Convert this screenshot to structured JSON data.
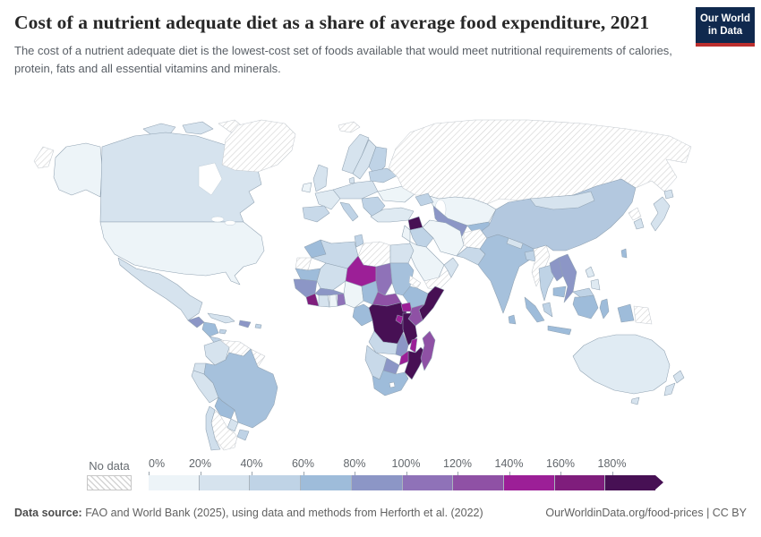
{
  "header": {
    "title": "Cost of a nutrient adequate diet as a share of average food expenditure, 2021",
    "subtitle": "The cost of a nutrient adequate diet is the lowest-cost set of foods available that would meet nutritional requirements of calories, protein, fats and all essential vitamins and minerals."
  },
  "logo": {
    "line1": "Our World",
    "line2": "in Data",
    "bg_color": "#10294e",
    "accent_color": "#bc2f2e"
  },
  "legend": {
    "no_data_label": "No data",
    "ticks": [
      "0%",
      "20%",
      "40%",
      "60%",
      "80%",
      "100%",
      "120%",
      "140%",
      "160%",
      "180%"
    ],
    "bins": [
      {
        "range": "0-20%",
        "color": "#edf4f8"
      },
      {
        "range": "20-40%",
        "color": "#d6e3ee"
      },
      {
        "range": "40-60%",
        "color": "#bfd3e6"
      },
      {
        "range": "60-80%",
        "color": "#9ebcda"
      },
      {
        "range": "80-100%",
        "color": "#8c96c6"
      },
      {
        "range": "100-120%",
        "color": "#8f72b8"
      },
      {
        "range": "120-140%",
        "color": "#8f51a5"
      },
      {
        "range": "140-160%",
        "color": "#9c1f97"
      },
      {
        "range": "160-180%",
        "color": "#7f1d7c"
      },
      {
        "range": "180%+",
        "color": "#471054"
      }
    ]
  },
  "chart_data": {
    "type": "heatmap",
    "subtype": "choropleth-world-map",
    "title": "Cost of a nutrient adequate diet as a share of average food expenditure, 2021",
    "unit": "% of average food expenditure",
    "legend_position": "bottom",
    "bins": [
      "0-20%",
      "20-40%",
      "40-60%",
      "60-80%",
      "80-100%",
      "100-120%",
      "120-140%",
      "140-160%",
      "160-180%",
      "180%+",
      "No data"
    ],
    "regions": {
      "usa": "0-20%",
      "alaska": "0-20%",
      "canada": "20-40%",
      "mexico": "20-40%",
      "guatemala": "80-100%",
      "honduras_nicaragua": "60-80%",
      "costa_rica_panama": "40-60%",
      "cuba": "20-40%",
      "jamaica": "40-60%",
      "hispaniola": "80-100%",
      "puerto_rico": "40-60%",
      "colombia": "20-40%",
      "venezuela": "No data",
      "guyanas": "No data",
      "ecuador": "20-40%",
      "peru": "20-40%",
      "brazil": "60-80%",
      "bolivia": "60-80%",
      "paraguay": "20-40%",
      "uruguay": "40-60%",
      "chile": "20-40%",
      "argentina": "No data",
      "greenland": "No data",
      "iceland": "No data",
      "uk": "20-40%",
      "ireland": "0-20%",
      "norway": "20-40%",
      "sweden": "20-40%",
      "finland": "40-60%",
      "denmark": "20-40%",
      "france": "20-40%",
      "iberia": "40-60%",
      "central_europe": "20-40%",
      "italy": "40-60%",
      "balkans": "40-60%",
      "ukraine": "0-20%",
      "belarus_baltic": "40-60%",
      "russia": "No data",
      "kazakhstan": "0-20%",
      "uzbekistan_turkmenistan": "80-100%",
      "kyrgyzstan_tajikistan": "60-80%",
      "caucasus": "40-60%",
      "turkey": "20-40%",
      "syria": "180%+",
      "jordan_israel": "0-20%",
      "iraq": "40-60%",
      "iran": "0-20%",
      "saudi_arabia": "0-20%",
      "yemen": "No data",
      "oman": "20-40%",
      "afghanistan": "No data",
      "pakistan": "40-60%",
      "india": "60-80%",
      "nepal": "20-40%",
      "bangladesh": "40-60%",
      "sri_lanka": "60-80%",
      "myanmar": "No data",
      "china": "40-60%",
      "mongolia": "20-40%",
      "north_korea": "No data",
      "south_korea": "20-40%",
      "japan": "20-40%",
      "taiwan": "60-80%",
      "thailand": "40-60%",
      "laos": "80-100%",
      "vietnam": "80-100%",
      "cambodia": "60-80%",
      "malaysia": "40-60%",
      "philippines": "20-40%",
      "indonesia": "60-80%",
      "papua_new_guinea": "No data",
      "australia": "20-40%",
      "tasmania": "20-40%",
      "new_zealand": "20-40%",
      "morocco": "60-80%",
      "western_sahara": "No data",
      "algeria": "40-60%",
      "tunisia": "40-60%",
      "libya": "No data",
      "egypt": "20-40%",
      "mauritania": "60-80%",
      "mali": "20-40%",
      "niger": "140-160%",
      "chad": "100-120%",
      "sudan": "60-80%",
      "eritrea": "No data",
      "ethiopia": "60-80%",
      "somalia": "180%+",
      "senegal_guinea": "80-100%",
      "sierra_leone_liberia": "160-180%",
      "ivory_coast": "20-40%",
      "ghana": "0-20%",
      "togo_benin": "100-120%",
      "burkina_faso": "80-100%",
      "nigeria": "0-20%",
      "cameroon": "60-80%",
      "central_african_republic": "120-140%",
      "gabon_congo": "60-80%",
      "drc": "180%+",
      "uganda": "140-160%",
      "kenya": "120-140%",
      "tanzania": "180%+",
      "rwanda_burundi": "140-160%",
      "angola": "40-60%",
      "zambia": "80-100%",
      "malawi": "140-160%",
      "mozambique": "180%+",
      "zimbabwe": "140-160%",
      "botswana": "80-100%",
      "namibia": "40-60%",
      "south_africa": "60-80%",
      "madagascar": "120-140%"
    }
  },
  "map": {
    "fills": {
      "alaska": "#edf4f8",
      "canada": "#d6e3ee",
      "usa": "#edf4f8",
      "mexico": "#d6e3ee",
      "guatemala": "#8c96c6",
      "honduras_nicaragua": "#9ebcda",
      "costa_rica_panama": "#bfd3e6",
      "cuba": "#d6e3ee",
      "jamaica": "#bfd3e6",
      "hispaniola": "#8c96c6",
      "puerto_rico": "#bfd3e6",
      "arctic_islands": "#d6e3ee",
      "colombia": "#d6e3ee",
      "ecuador": "#d6e3ee",
      "peru": "#d6e3ee",
      "brazil": "#a6c1dc",
      "bolivia": "#9ebcda",
      "paraguay": "#d6e3ee",
      "uruguay": "#bfd3e6",
      "chile": "#d0dfec",
      "uk": "#d6e3ee",
      "ireland": "#edf4f8",
      "norway": "#d6e3ee",
      "sweden": "#d6e3ee",
      "finland": "#bfd3e6",
      "denmark": "#d6e3ee",
      "france": "#dfeaf2",
      "iberia": "#c8d9e9",
      "central_europe": "#d6e3ee",
      "italy": "#bfd3e6",
      "balkans": "#bfd3e6",
      "ukraine": "#eef5f8",
      "belarus_baltic": "#bfd3e6",
      "kazakhstan": "#edf4f8",
      "uzbekistan_turkmenistan": "#8c96c6",
      "kyrgyzstan_tajikistan": "#9ebcda",
      "caucasus": "#bfd3e6",
      "turkey": "#dfeaf2",
      "syria": "#471054",
      "jordan_israel": "#edf4f8",
      "iraq": "#bfd3e6",
      "iran": "#f0f6f9",
      "saudi_arabia": "#edf4f8",
      "oman": "#d6e3ee",
      "pakistan": "#c8d9e9",
      "india": "#a6c1dc",
      "nepal": "#d6e3ee",
      "bangladesh": "#bfd3e6",
      "sri_lanka": "#9ebcda",
      "china": "#b3c8df",
      "mongolia": "#d6e3ee",
      "south_korea": "#d6e3ee",
      "japan": "#d6e3ee",
      "taiwan": "#9ebcda",
      "thailand": "#bfd3e6",
      "laos": "#8c96c6",
      "vietnam": "#8c96c6",
      "cambodia": "#9ebcda",
      "malaysia": "#bfd3e6",
      "philippines": "#dfeaf2",
      "indonesia": "#9ebcda",
      "australia": "#e0ebf3",
      "tasmania": "#d6e3ee",
      "new_zealand": "#d6e3ee",
      "morocco": "#9ebcda",
      "algeria": "#c8d9e9",
      "tunisia": "#bfd3e6",
      "egypt": "#d6e3ee",
      "mauritania": "#9ebcda",
      "mali": "#d0dfec",
      "niger": "#9c1f97",
      "chad": "#8f72b8",
      "sudan": "#a6c1dc",
      "ethiopia": "#9ebcda",
      "somalia": "#471054",
      "senegal_guinea": "#8c96c6",
      "sierra_leone_liberia": "#7f1d7c",
      "ivory_coast": "#d6e3ee",
      "ghana": "#edf4f8",
      "togo_benin": "#8f72b8",
      "burkina_faso": "#8c96c6",
      "nigeria": "#eef5f8",
      "cameroon": "#9ebcda",
      "central_african_republic": "#8f51a5",
      "gabon_congo": "#9ebcda",
      "drc": "#471054",
      "uganda": "#9c1f97",
      "kenya": "#8f51a5",
      "tanzania": "#471054",
      "rwanda_burundi": "#9c1f97",
      "angola": "#c8d9e9",
      "zambia": "#8c96c6",
      "malawi": "#9c1f97",
      "mozambique": "#471054",
      "zimbabwe": "#9c1f97",
      "botswana": "#8c96c6",
      "namibia": "#c8d9e9",
      "south_africa": "#9ebcda",
      "madagascar": "#8f51a5"
    }
  },
  "footer": {
    "source_label": "Data source:",
    "source_text": " FAO and World Bank (2025), using data and methods from Herforth et al. (2022)",
    "link_text": "OurWorldinData.org/food-prices | CC BY"
  }
}
